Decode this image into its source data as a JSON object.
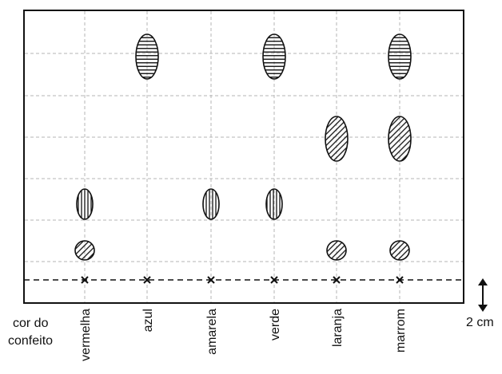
{
  "legend": {
    "cor_do": "cor do",
    "confeito": "confeito"
  },
  "scale": {
    "label": "2 cm"
  },
  "lanes": [
    {
      "label": "vermelha",
      "spots": [
        {
          "level": 1,
          "pattern": "diagonal",
          "shape": "round"
        },
        {
          "level": 2,
          "pattern": "vertical",
          "shape": "narrow"
        }
      ]
    },
    {
      "label": "azul",
      "spots": [
        {
          "level": 5,
          "pattern": "horizontal",
          "shape": "tall"
        }
      ]
    },
    {
      "label": "amarela",
      "spots": [
        {
          "level": 2,
          "pattern": "vertical",
          "shape": "narrow"
        }
      ]
    },
    {
      "label": "verde",
      "spots": [
        {
          "level": 2,
          "pattern": "vertical",
          "shape": "narrow"
        },
        {
          "level": 5,
          "pattern": "horizontal",
          "shape": "tall"
        }
      ]
    },
    {
      "label": "laranja",
      "spots": [
        {
          "level": 1,
          "pattern": "diagonal",
          "shape": "round"
        },
        {
          "level": 3,
          "pattern": "diagonal",
          "shape": "tall"
        }
      ]
    },
    {
      "label": "marrom",
      "spots": [
        {
          "level": 1,
          "pattern": "diagonal",
          "shape": "round"
        },
        {
          "level": 3,
          "pattern": "diagonal",
          "shape": "tall"
        },
        {
          "level": 5,
          "pattern": "horizontal",
          "shape": "tall"
        }
      ]
    }
  ],
  "colors": {
    "frame": "#111111",
    "grid": "#b5b5b5",
    "ink": "#111111"
  }
}
